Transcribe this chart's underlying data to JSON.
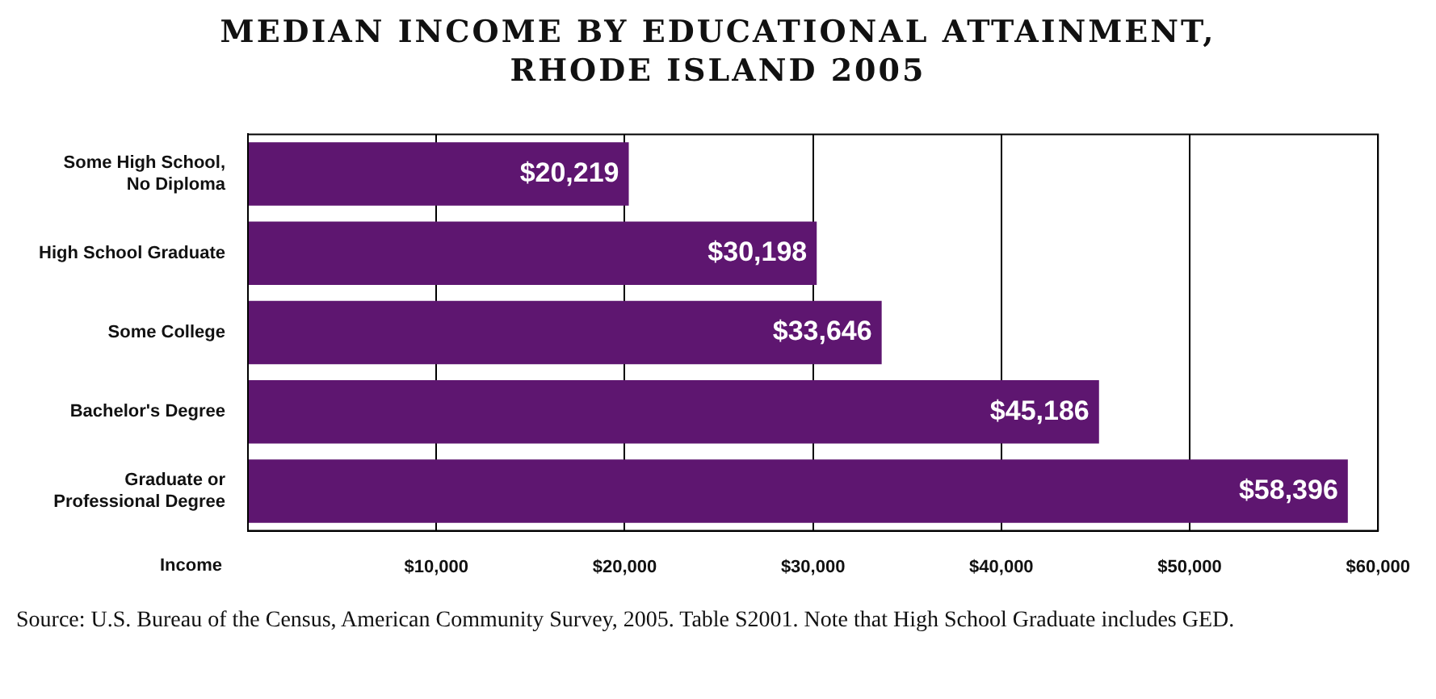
{
  "chart_data": {
    "type": "bar",
    "orientation": "horizontal",
    "title": "MEDIAN INCOME BY EDUCATIONAL ATTAINMENT,\nRHODE ISLAND 2005",
    "xlabel": "Income",
    "categories": [
      "Some High School,\nNo Diploma",
      "High School Graduate",
      "Some College",
      "Bachelor's Degree",
      "Graduate or\nProfessional Degree"
    ],
    "values": [
      20219,
      30198,
      33646,
      45186,
      58396
    ],
    "color": "#5e1670",
    "value_labels": [
      "$20,219",
      "$30,198",
      "$33,646",
      "$45,186",
      "$58,396"
    ],
    "xlim": [
      0,
      60000
    ],
    "xticks": [
      {
        "value": 0,
        "label": null
      },
      {
        "value": 10000,
        "label": "$10,000"
      },
      {
        "value": 20000,
        "label": "$20,000"
      },
      {
        "value": 30000,
        "label": "$30,000"
      },
      {
        "value": 40000,
        "label": "$40,000"
      },
      {
        "value": 50000,
        "label": "$50,000"
      },
      {
        "value": 60000,
        "label": "$60,000"
      }
    ],
    "grid": "x",
    "legend": false,
    "annotations": [
      "Source: U.S. Bureau of the Census, American Community Survey, 2005. Table S2001. Note that High School Graduate includes GED."
    ]
  }
}
